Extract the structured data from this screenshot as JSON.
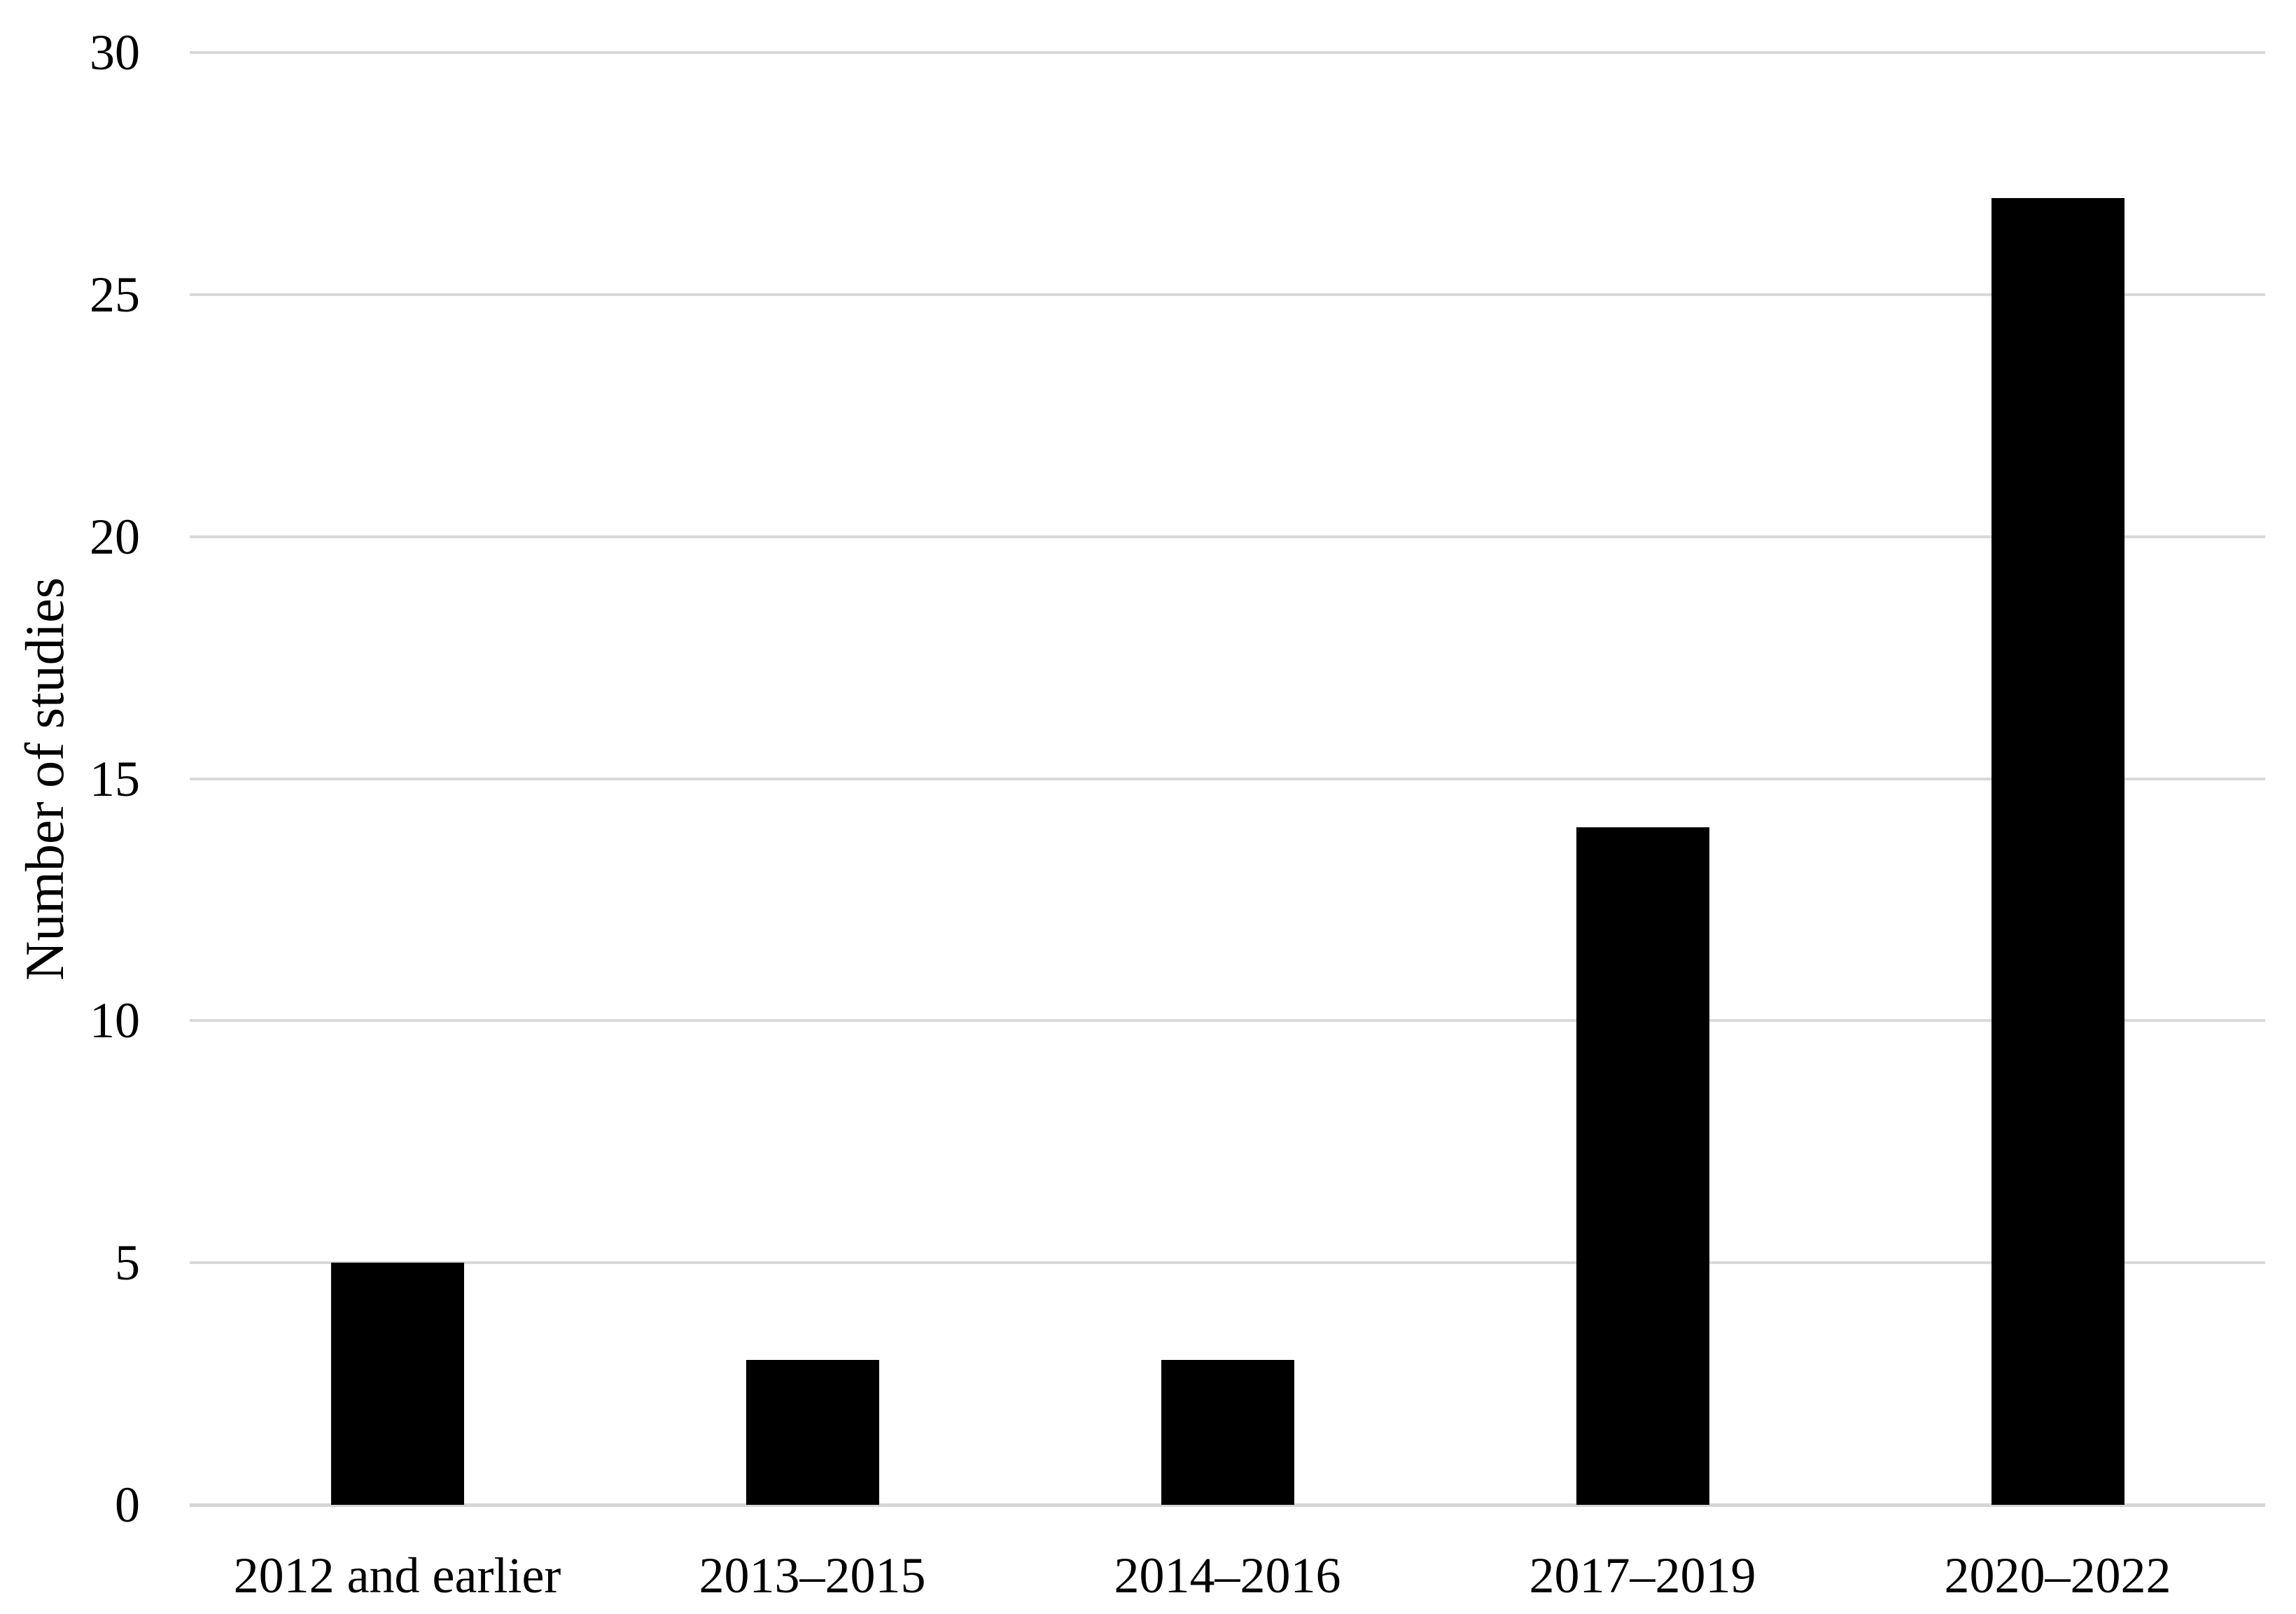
{
  "figure": {
    "background": "#ffffff"
  },
  "chart_data": {
    "type": "bar",
    "title": "",
    "xlabel": "",
    "ylabel": "Number of studies",
    "categories": [
      "2012 and earlier",
      "2013–2015",
      "2014–2016",
      "2017–2019",
      "2020–2022"
    ],
    "values": [
      5,
      3,
      3,
      14,
      27
    ],
    "ylim": [
      0,
      30
    ],
    "yticks": [
      0,
      5,
      10,
      15,
      20,
      25,
      30
    ],
    "grid": "horizontal gridlines on",
    "legend": "none",
    "bar_color": "#000000",
    "gridline_color": "#d9d9d9",
    "axis_line_color": "#d6d6d6",
    "text_color": "#000000"
  }
}
